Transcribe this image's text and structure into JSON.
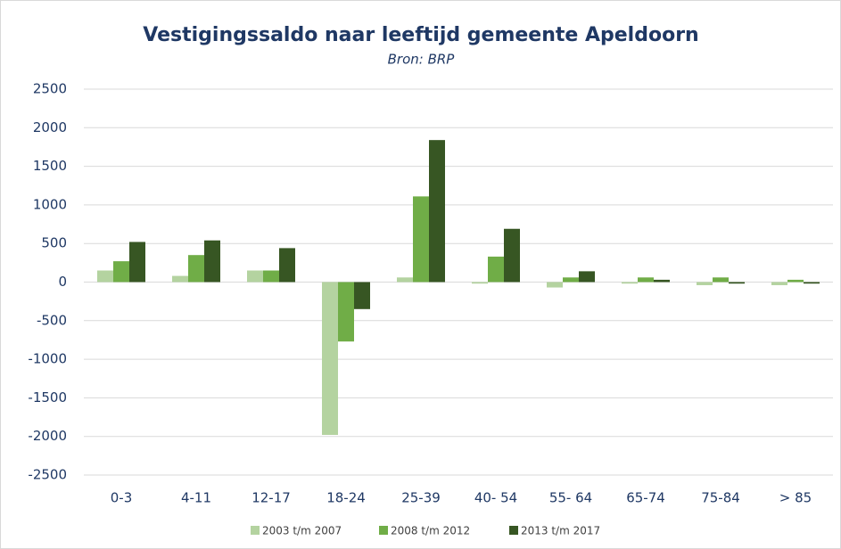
{
  "chart_data": {
    "type": "bar",
    "title": "Vestigingssaldo  naar leeftijd  gemeente Apeldoorn",
    "subtitle": "Bron: BRP",
    "categories": [
      "0-3",
      "4-11",
      "12-17",
      "18-24",
      "25-39",
      "40- 54",
      "55- 64",
      "65-74",
      "75-84",
      "> 85"
    ],
    "series": [
      {
        "name": "2003 t/m 2007",
        "color": "#b4d3a0",
        "values": [
          150,
          80,
          150,
          -1980,
          60,
          -20,
          -70,
          -20,
          -40,
          -40
        ]
      },
      {
        "name": "2008 t/m 2012",
        "color": "#70ad47",
        "values": [
          270,
          350,
          150,
          -770,
          1110,
          330,
          60,
          60,
          60,
          30
        ]
      },
      {
        "name": "2013 t/m 2017",
        "color": "#375623",
        "values": [
          520,
          540,
          440,
          -350,
          1840,
          690,
          140,
          30,
          -20,
          -20
        ]
      }
    ],
    "ylim": [
      -2500,
      2500
    ],
    "yticks": [
      -2500,
      -2000,
      -1500,
      -1000,
      -500,
      0,
      500,
      1000,
      1500,
      2000,
      2500
    ],
    "grid": true,
    "legend": "bottom"
  }
}
